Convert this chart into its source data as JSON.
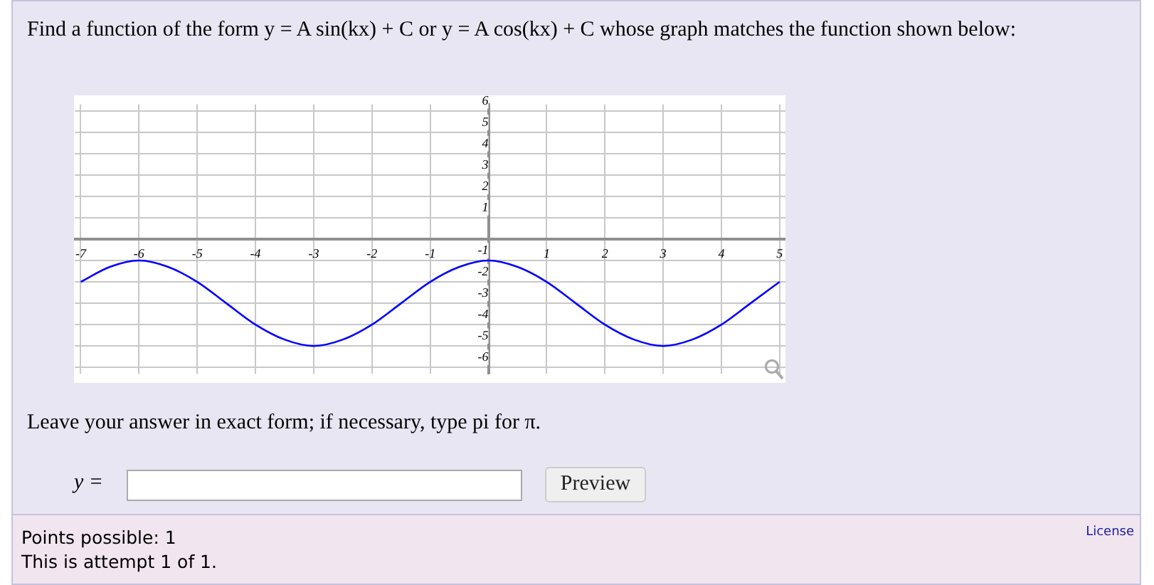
{
  "chart_data": {
    "type": "line",
    "title": "Find a function of the form y = A sin(kx) + C or y = A cos(kx) + C whose graph matches the function shown below:",
    "annotations": [
      "Leave your answer in exact form; if necessary, type pi for π.",
      "y =",
      "Preview",
      "Points possible: 1",
      "This is attempt 1 of 1.",
      "License"
    ],
    "x": [
      -7,
      -6.5,
      -6,
      -5.5,
      -5,
      -4.5,
      -4,
      -3.5,
      -3,
      -2.5,
      -2,
      -1.5,
      -1,
      -0.5,
      0,
      0.5,
      1,
      1.5,
      2,
      2.5,
      3,
      3.5,
      4,
      4.5,
      5
    ],
    "series": [
      {
        "color": "#0000ff",
        "values": [
          -2,
          -1.3,
          -1,
          -1.3,
          -2,
          -3,
          -4,
          -4.7,
          -5,
          -4.7,
          -4,
          -3,
          -2,
          -1.3,
          -1,
          -1.3,
          -2,
          -3,
          -4,
          -4.7,
          -5,
          -4.7,
          -4,
          -3,
          -2
        ]
      }
    ],
    "xlim": [
      -7.1,
      5.1
    ],
    "ylim": [
      -6.3,
      6.3
    ],
    "xticks": [
      -7,
      -6,
      -5,
      -4,
      -3,
      -2,
      -1,
      {
        "value": 0,
        "label": null
      },
      1,
      2,
      3,
      4,
      5
    ],
    "yticks": [
      -6,
      -5,
      -4,
      -3,
      -2,
      -1,
      {
        "value": 0,
        "label": null
      },
      1,
      2,
      3,
      4,
      5,
      6
    ],
    "grid": true,
    "legend": false,
    "marker": "none",
    "line_style": "solid"
  }
}
